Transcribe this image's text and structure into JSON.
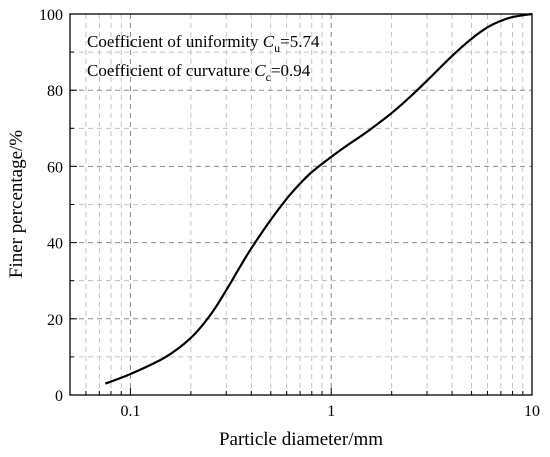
{
  "chart_data": {
    "type": "line",
    "xscale": "log",
    "xlim": [
      0.05,
      10
    ],
    "ylim": [
      0,
      100
    ],
    "xlabel": "Particle diameter/mm",
    "ylabel": "Finer percentage/%",
    "x_ticks": [
      {
        "value": 0.1,
        "label": "0.1"
      },
      {
        "value": 1,
        "label": "1"
      },
      {
        "value": 10,
        "label": "10"
      }
    ],
    "y_ticks": [
      {
        "value": 0,
        "label": "0"
      },
      {
        "value": 20,
        "label": "20"
      },
      {
        "value": 40,
        "label": "40"
      },
      {
        "value": 60,
        "label": "60"
      },
      {
        "value": 80,
        "label": "80"
      },
      {
        "value": 100,
        "label": "100"
      }
    ],
    "grid": true,
    "grid_style": "dashed",
    "annotations": [
      {
        "prefix": "Coefficient of uniformity ",
        "symbol": "C",
        "subscript": "u",
        "suffix": "=5.74"
      },
      {
        "prefix": "Coefficient of curvature ",
        "symbol": "C",
        "subscript": "c",
        "suffix": "=0.94"
      }
    ],
    "series": [
      {
        "color": "#000000",
        "x": [
          0.075,
          0.1,
          0.15,
          0.2,
          0.25,
          0.3,
          0.35,
          0.4,
          0.5,
          0.6,
          0.7,
          0.8,
          1.0,
          1.2,
          1.5,
          2.0,
          2.5,
          3.0,
          4.0,
          5.0,
          6.0,
          7.0,
          8.0,
          10.0
        ],
        "y": [
          3,
          5.5,
          10,
          15,
          21,
          27.5,
          33.5,
          38.5,
          46,
          51.5,
          55.5,
          58.5,
          62.5,
          65.5,
          69,
          74,
          78.5,
          82.5,
          89,
          93.5,
          96.5,
          98.2,
          99.2,
          100
        ]
      }
    ]
  }
}
